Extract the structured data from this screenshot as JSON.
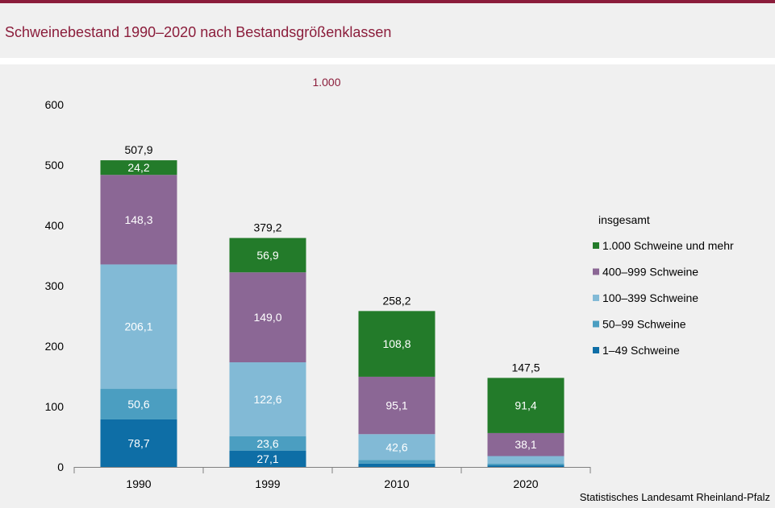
{
  "header": {
    "title": "Schweinebestand 1990–2020 nach Bestandsgrößenklassen"
  },
  "source": "Statistisches Landesamt  Rheinland-Pfalz",
  "chart_data": {
    "type": "bar",
    "stacked": true,
    "unit_label": "1.000",
    "categories": [
      "1990",
      "1999",
      "2010",
      "2020"
    ],
    "ylim": [
      0,
      600
    ],
    "yticks": [
      0,
      100,
      200,
      300,
      400,
      500,
      600
    ],
    "grid": false,
    "legend_title": "insgesamt",
    "legend_position": "right",
    "series": [
      {
        "name": "1–49 Schweine",
        "color": "#0e6ea6",
        "values": [
          78.7,
          27.1,
          5.5,
          2.6
        ],
        "labels": [
          "78,7",
          "27,1",
          "",
          ""
        ]
      },
      {
        "name": "50–99 Schweine",
        "color": "#4b9ec1",
        "values": [
          50.6,
          23.6,
          6.2,
          3.1
        ],
        "labels": [
          "50,6",
          "23,6",
          "",
          ""
        ]
      },
      {
        "name": "100–399 Schweine",
        "color": "#82bad6",
        "values": [
          206.1,
          122.6,
          42.6,
          12.3
        ],
        "labels": [
          "206,1",
          "122,6",
          "42,6",
          ""
        ]
      },
      {
        "name": "400–999 Schweine",
        "color": "#8b6795",
        "values": [
          148.3,
          149.0,
          95.1,
          38.1
        ],
        "labels": [
          "148,3",
          "149,0",
          "95,1",
          "38,1"
        ]
      },
      {
        "name": "1.000 Schweine und mehr",
        "color": "#237b2a",
        "values": [
          24.2,
          56.9,
          108.8,
          91.4
        ],
        "labels": [
          "24,2",
          "56,9",
          "108,8",
          "91,4"
        ]
      }
    ],
    "totals": [
      507.9,
      379.2,
      258.2,
      147.5
    ],
    "total_labels": [
      "507,9",
      "379,2",
      "258,2",
      "147,5"
    ]
  }
}
